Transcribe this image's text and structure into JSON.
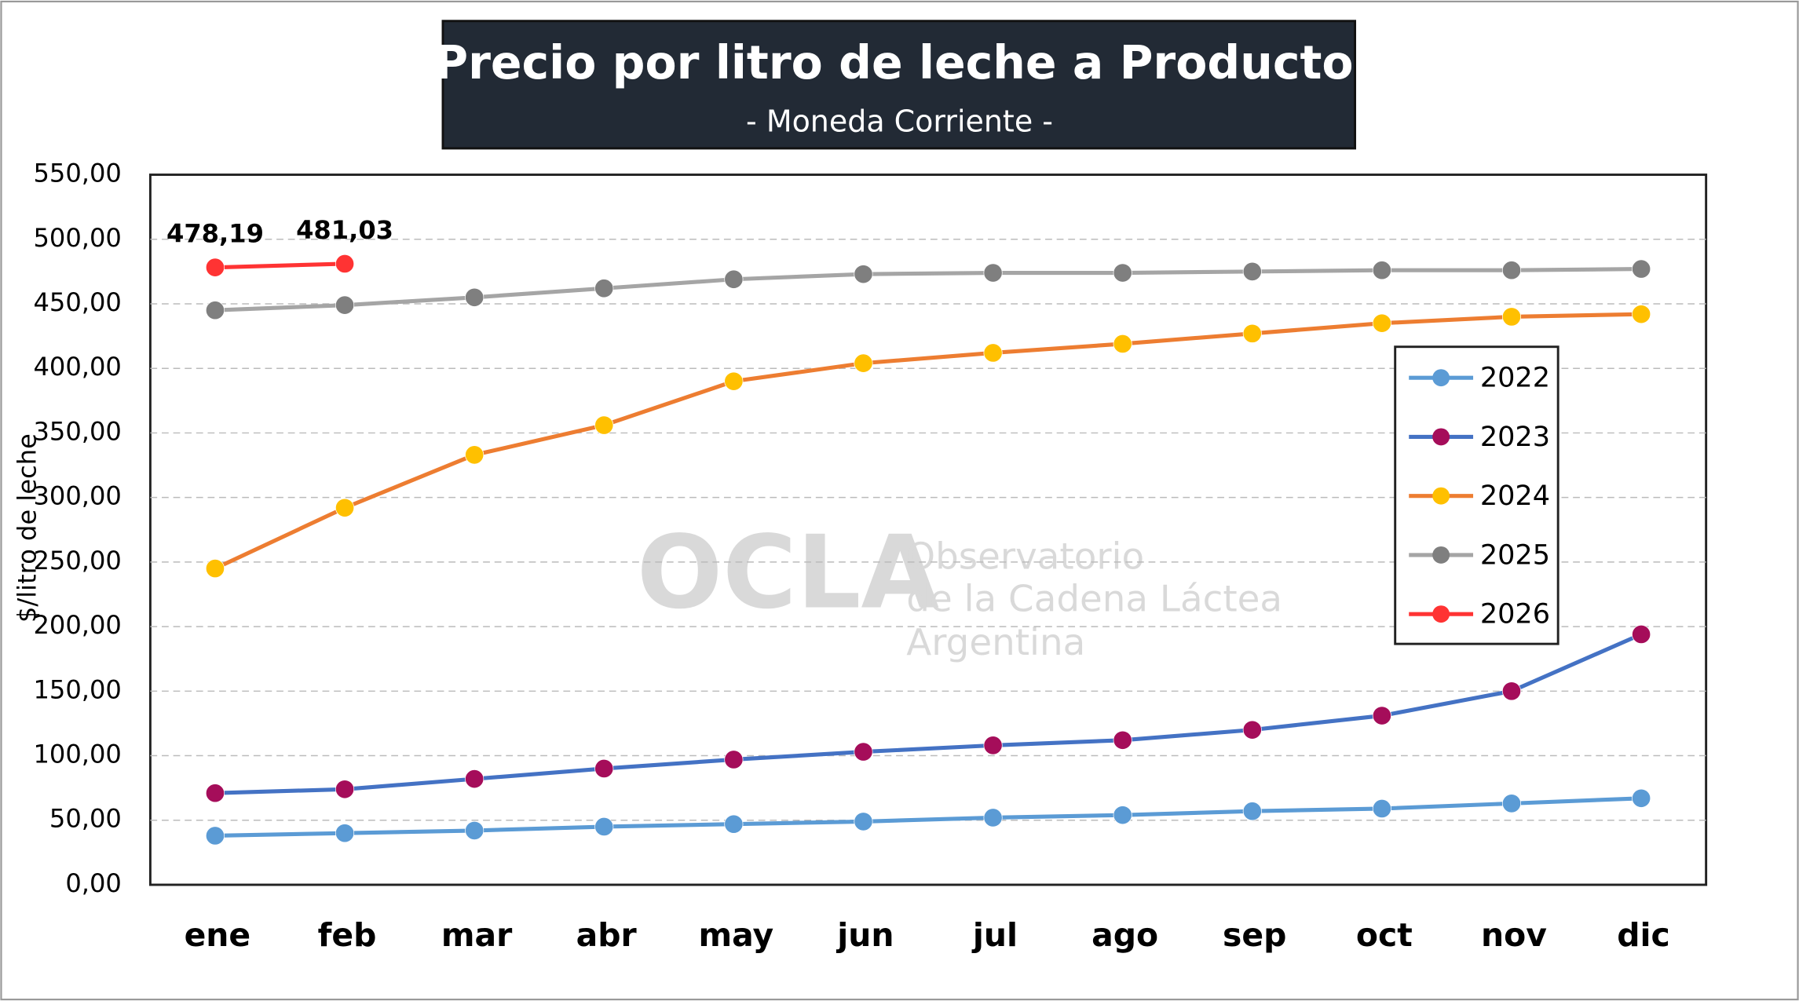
{
  "chart_data": {
    "type": "line",
    "title": "Precio por litro de leche a Productor",
    "subtitle": "- Moneda  Corriente -",
    "y_label": "$/litro de leche",
    "watermark": [
      "OCLA",
      "Observatorio",
      "de la Cadena Láctea",
      "Argentina"
    ],
    "categories": [
      "ene",
      "feb",
      "mar",
      "abr",
      "may",
      "jun",
      "jul",
      "ago",
      "sep",
      "oct",
      "nov",
      "dic"
    ],
    "series": [
      {
        "name": "2022",
        "color": "#5b9bd5",
        "marker_color": "#5b9bd5",
        "values": [
          38,
          40,
          42,
          45,
          47,
          49,
          52,
          54,
          57,
          59,
          63,
          67
        ]
      },
      {
        "name": "2023",
        "color": "#4472c4",
        "marker_color": "#a50d5a",
        "values": [
          71,
          74,
          82,
          90,
          97,
          103,
          108,
          112,
          120,
          131,
          150,
          194
        ]
      },
      {
        "name": "2024",
        "color": "#ed7d31",
        "marker_color": "#ffc000",
        "values": [
          245,
          292,
          333,
          356,
          390,
          404,
          412,
          419,
          427,
          435,
          440,
          442
        ]
      },
      {
        "name": "2025",
        "color": "#a5a5a5",
        "marker_color": "#7f7f7f",
        "values": [
          445,
          449,
          455,
          462,
          469,
          473,
          474,
          474,
          475,
          476,
          476,
          477
        ]
      },
      {
        "name": "2026",
        "color": "#ff3333",
        "marker_color": "#ff3333",
        "values": [
          478.19,
          481.03,
          null,
          null,
          null,
          null,
          null,
          null,
          null,
          null,
          null,
          null
        ],
        "value_labels": [
          "478,19",
          "481,03",
          null,
          null,
          null,
          null,
          null,
          null,
          null,
          null,
          null,
          null
        ]
      }
    ],
    "ylim": [
      0,
      550
    ],
    "yticks": [
      {
        "value": 0,
        "label": "0,00"
      },
      {
        "value": 50,
        "label": "50,00"
      },
      {
        "value": 100,
        "label": "100,00"
      },
      {
        "value": 150,
        "label": "150,00"
      },
      {
        "value": 200,
        "label": "200,00"
      },
      {
        "value": 250,
        "label": "250,00"
      },
      {
        "value": 300,
        "label": "300,00"
      },
      {
        "value": 350,
        "label": "350,00"
      },
      {
        "value": 400,
        "label": "400,00"
      },
      {
        "value": 450,
        "label": "450,00"
      },
      {
        "value": 500,
        "label": "500,00"
      },
      {
        "value": 550,
        "label": "550,00"
      }
    ],
    "grid": true,
    "legend": "right"
  }
}
